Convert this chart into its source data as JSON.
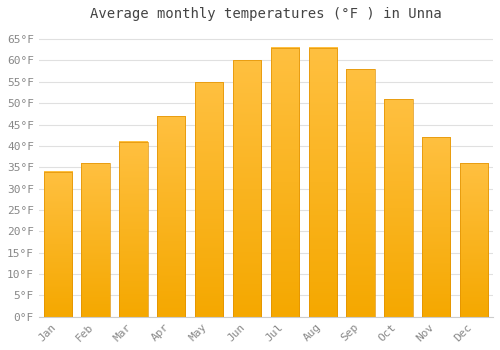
{
  "months": [
    "Jan",
    "Feb",
    "Mar",
    "Apr",
    "May",
    "Jun",
    "Jul",
    "Aug",
    "Sep",
    "Oct",
    "Nov",
    "Dec"
  ],
  "values": [
    34,
    36,
    41,
    47,
    55,
    60,
    63,
    63,
    58,
    51,
    42,
    36
  ],
  "bar_color_top": "#FFC040",
  "bar_color_bottom": "#F5A800",
  "bar_edge_color": "#E09000",
  "title": "Average monthly temperatures (°F ) in Unna",
  "ylim": [
    0,
    68
  ],
  "yticks": [
    0,
    5,
    10,
    15,
    20,
    25,
    30,
    35,
    40,
    45,
    50,
    55,
    60,
    65
  ],
  "ytick_labels": [
    "0°F",
    "5°F",
    "10°F",
    "15°F",
    "20°F",
    "25°F",
    "30°F",
    "35°F",
    "40°F",
    "45°F",
    "50°F",
    "55°F",
    "60°F",
    "65°F"
  ],
  "background_color": "#ffffff",
  "grid_color": "#e0e0e0",
  "title_fontsize": 10,
  "tick_fontsize": 8,
  "font_family": "monospace",
  "bar_width": 0.75
}
